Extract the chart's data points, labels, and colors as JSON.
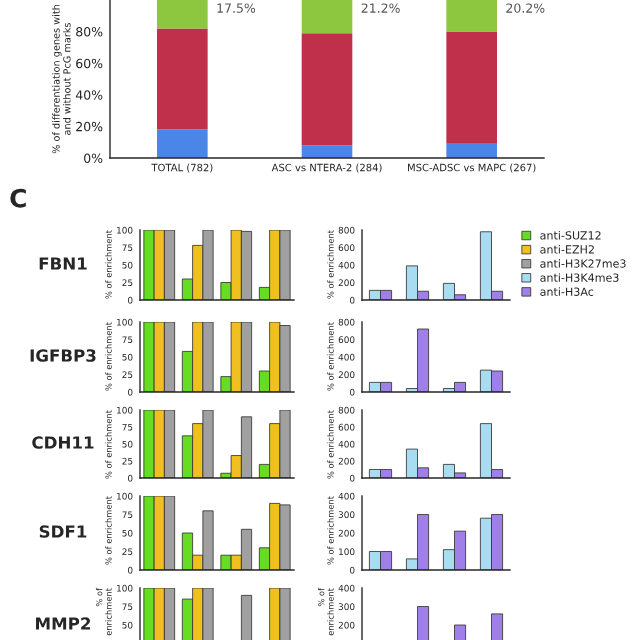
{
  "chart_data": [
    {
      "type": "bar",
      "stacked": true,
      "ylabel": "% of differentiation genes with and without PcG marks",
      "categories": [
        "TOTAL (782)",
        "ASC vs NTERA-2 (284)",
        "MSC-ADSC vs MAPC (267)"
      ],
      "ylim": [
        0,
        100
      ],
      "yticks": [
        {
          "value": 0,
          "label": "0%"
        },
        {
          "value": 20,
          "label": "20%"
        },
        {
          "value": 40,
          "label": "40%"
        },
        {
          "value": 60,
          "label": "60%"
        },
        {
          "value": 80,
          "label": "80%"
        }
      ],
      "series": [
        {
          "color": "#4a86e8",
          "values": [
            18,
            8,
            9
          ]
        },
        {
          "color": "#c0304a",
          "values": [
            64,
            71,
            71
          ]
        },
        {
          "color": "#8dc63f",
          "values": [
            18,
            21,
            20
          ]
        }
      ],
      "annotations": [
        "17.5%",
        "21.2%",
        "20.2%"
      ]
    },
    {
      "type": "bar",
      "title": "FBN1",
      "ylabel": "% of enrichment",
      "categories": [
        null,
        null,
        null,
        null
      ],
      "ylim": [
        0,
        100
      ],
      "yticks": [
        0,
        25,
        50,
        75,
        100
      ],
      "annotations": [
        "C"
      ],
      "legend": "right",
      "series": [
        {
          "name": "anti-SUZ12",
          "color": "#66dd22",
          "values": [
            100,
            30,
            25,
            18
          ]
        },
        {
          "name": "anti-EZH2",
          "color": "#f0c020",
          "values": [
            100,
            78,
            100,
            100
          ]
        },
        {
          "name": "anti-H3K27me3",
          "color": "#a0a0a0",
          "values": [
            100,
            100,
            98,
            100
          ]
        }
      ]
    },
    {
      "type": "bar",
      "ylabel": "% of enrichment",
      "categories": [
        null,
        null,
        null,
        null
      ],
      "ylim": [
        0,
        800
      ],
      "yticks": [
        0,
        200,
        400,
        600,
        800
      ],
      "legend": "right",
      "series": [
        {
          "name": "anti-H3K4me3",
          "color": "#a8dcf0",
          "values": [
            110,
            390,
            190,
            780
          ]
        },
        {
          "name": "anti-H3Ac",
          "color": "#a080e8",
          "values": [
            110,
            100,
            60,
            100
          ]
        }
      ]
    },
    {
      "type": "bar",
      "title": "IGFBP3",
      "ylabel": "% of enrichment",
      "categories": [
        null,
        null,
        null,
        null
      ],
      "ylim": [
        0,
        100
      ],
      "yticks": [
        0,
        25,
        50,
        75,
        100
      ],
      "series": [
        {
          "color": "#66dd22",
          "values": [
            100,
            58,
            22,
            30
          ]
        },
        {
          "color": "#f0c020",
          "values": [
            100,
            100,
            100,
            100
          ]
        },
        {
          "color": "#a0a0a0",
          "values": [
            100,
            100,
            100,
            95
          ]
        }
      ]
    },
    {
      "type": "bar",
      "ylabel": "% of enrichment",
      "categories": [
        null,
        null,
        null,
        null
      ],
      "ylim": [
        0,
        800
      ],
      "yticks": [
        0,
        200,
        400,
        600,
        800
      ],
      "series": [
        {
          "color": "#a8dcf0",
          "values": [
            110,
            40,
            40,
            250
          ]
        },
        {
          "color": "#a080e8",
          "values": [
            110,
            720,
            110,
            240
          ]
        }
      ]
    },
    {
      "type": "bar",
      "title": "CDH11",
      "ylabel": "% of enrichment",
      "categories": [
        null,
        null,
        null,
        null
      ],
      "ylim": [
        0,
        100
      ],
      "yticks": [
        0,
        25,
        50,
        75,
        100
      ],
      "series": [
        {
          "color": "#66dd22",
          "values": [
            100,
            62,
            7,
            20
          ]
        },
        {
          "color": "#f0c020",
          "values": [
            100,
            80,
            33,
            80
          ]
        },
        {
          "color": "#a0a0a0",
          "values": [
            100,
            100,
            90,
            100
          ]
        }
      ]
    },
    {
      "type": "bar",
      "ylabel": "% of enrichment",
      "categories": [
        null,
        null,
        null,
        null
      ],
      "ylim": [
        0,
        800
      ],
      "yticks": [
        0,
        200,
        400,
        600,
        800
      ],
      "series": [
        {
          "color": "#a8dcf0",
          "values": [
            100,
            340,
            160,
            640
          ]
        },
        {
          "color": "#a080e8",
          "values": [
            100,
            120,
            60,
            100
          ]
        }
      ]
    },
    {
      "type": "bar",
      "title": "SDF1",
      "ylabel": "% of enrichment",
      "categories": [
        null,
        null,
        null,
        null
      ],
      "ylim": [
        0,
        100
      ],
      "yticks": [
        0,
        25,
        50,
        75,
        100
      ],
      "series": [
        {
          "color": "#66dd22",
          "values": [
            100,
            50,
            20,
            30
          ]
        },
        {
          "color": "#f0c020",
          "values": [
            100,
            20,
            20,
            90
          ]
        },
        {
          "color": "#a0a0a0",
          "values": [
            100,
            80,
            55,
            88
          ]
        }
      ]
    },
    {
      "type": "bar",
      "ylabel": "% of enrichment",
      "categories": [
        null,
        null,
        null,
        null
      ],
      "ylim": [
        0,
        400
      ],
      "yticks": [
        0,
        100,
        200,
        300,
        400
      ],
      "series": [
        {
          "color": "#a8dcf0",
          "values": [
            100,
            60,
            110,
            280
          ]
        },
        {
          "color": "#a080e8",
          "values": [
            100,
            300,
            210,
            300
          ]
        }
      ]
    },
    {
      "type": "bar",
      "title": "MMP2",
      "ylabel": "% of enrichment",
      "categories": [
        null,
        null,
        null,
        null
      ],
      "ylim": [
        0,
        100
      ],
      "yticks": [
        50,
        75,
        100
      ],
      "series": [
        {
          "color": "#66dd22",
          "values": [
            100,
            85,
            null,
            null
          ]
        },
        {
          "color": "#f0c020",
          "values": [
            100,
            100,
            null,
            100
          ]
        },
        {
          "color": "#a0a0a0",
          "values": [
            100,
            100,
            90,
            100
          ]
        }
      ]
    },
    {
      "type": "bar",
      "ylabel": "% of enrichment",
      "categories": [
        null,
        null,
        null,
        null
      ],
      "ylim": [
        0,
        400
      ],
      "yticks": [
        200,
        300,
        400
      ],
      "series": [
        {
          "color": "#a8dcf0",
          "values": [
            null,
            null,
            null,
            null
          ]
        },
        {
          "color": "#a080e8",
          "values": [
            null,
            300,
            200,
            260
          ]
        }
      ]
    }
  ]
}
